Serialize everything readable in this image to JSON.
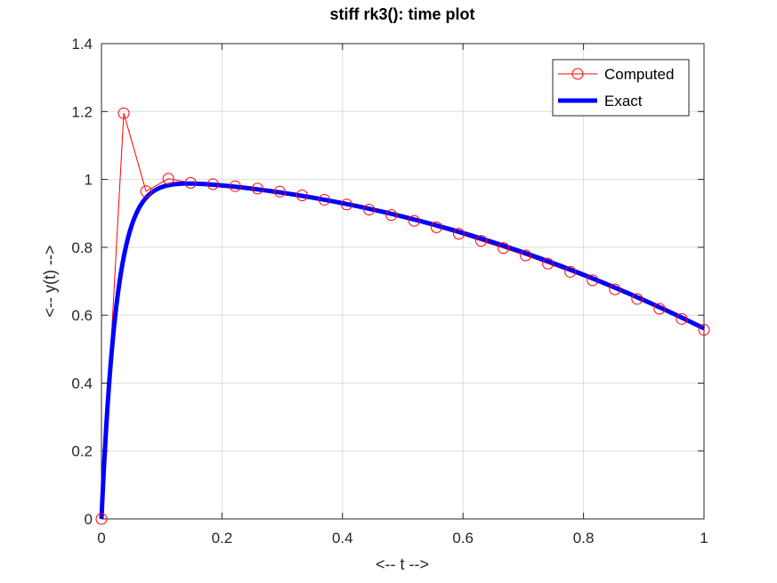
{
  "chart_data": {
    "type": "line",
    "title": "stiff rk3(): time plot",
    "xlabel": "<-- t -->",
    "ylabel": "<-- y(t) -->",
    "xlim": [
      0,
      1
    ],
    "ylim": [
      0,
      1.4
    ],
    "xticks": [
      0,
      0.2,
      0.4,
      0.6,
      0.8,
      1
    ],
    "yticks": [
      0,
      0.2,
      0.4,
      0.6,
      0.8,
      1,
      1.2,
      1.4
    ],
    "xtick_labels": [
      "0",
      "0.2",
      "0.4",
      "0.6",
      "0.8",
      "1"
    ],
    "ytick_labels": [
      "0",
      "0.2",
      "0.4",
      "0.6",
      "0.8",
      "1",
      "1.2",
      "1.4"
    ],
    "grid": true,
    "legend_position": "top-right",
    "series": [
      {
        "name": "Computed",
        "color": "#ff0000",
        "marker": "circle",
        "x": [
          0,
          0.037,
          0.074,
          0.111,
          0.148,
          0.185,
          0.222,
          0.259,
          0.296,
          0.333,
          0.37,
          0.407,
          0.444,
          0.481,
          0.519,
          0.556,
          0.593,
          0.63,
          0.667,
          0.704,
          0.741,
          0.778,
          0.815,
          0.852,
          0.889,
          0.926,
          0.963,
          1.0
        ],
        "y": [
          0,
          1.195,
          0.965,
          1.002,
          0.99,
          0.986,
          0.98,
          0.973,
          0.964,
          0.953,
          0.94,
          0.926,
          0.911,
          0.895,
          0.878,
          0.859,
          0.84,
          0.819,
          0.798,
          0.776,
          0.752,
          0.728,
          0.703,
          0.676,
          0.648,
          0.619,
          0.589,
          0.557
        ]
      },
      {
        "name": "Exact",
        "color": "#0000ff"
      }
    ]
  }
}
